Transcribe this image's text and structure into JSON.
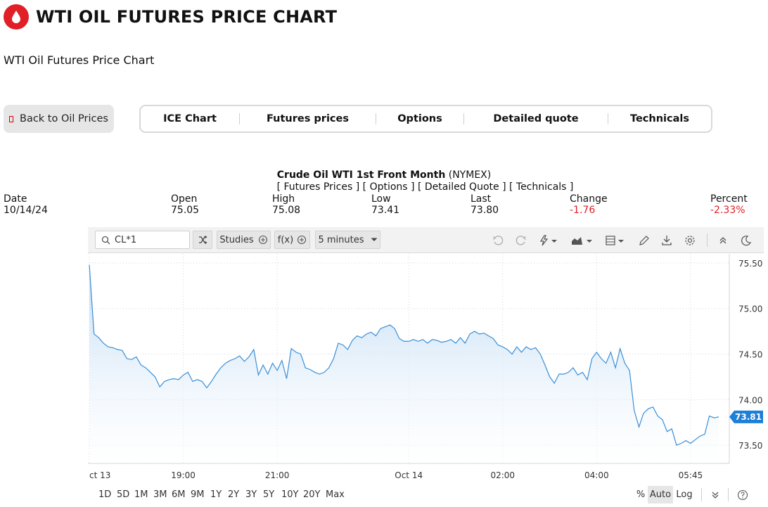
{
  "header": {
    "title": "WTI OIL FUTURES PRICE CHART",
    "subtitle": "WTI Oil Futures Price Chart",
    "logo_icon": "oil-drop-icon",
    "brand_color": "#e01f26"
  },
  "back_button": {
    "label": "Back to Oil Prices",
    "icon": "arrow-icon"
  },
  "tabs": [
    {
      "label": "ICE Chart"
    },
    {
      "label": "Futures prices"
    },
    {
      "label": "Options"
    },
    {
      "label": "Detailed quote"
    },
    {
      "label": "Technicals"
    }
  ],
  "instrument": {
    "name": "Crude Oil WTI 1st Front Month",
    "exchange": "(NYMEX)",
    "links": [
      "[ Futures Prices ]",
      "[ Options ]",
      "[ Detailed Quote ]",
      "[ Technicals ]"
    ]
  },
  "quote": {
    "date_label": "Date",
    "date": "10/14/24",
    "open_label": "Open",
    "open": "75.05",
    "high_label": "High",
    "high": "75.08",
    "low_label": "Low",
    "low": "73.41",
    "last_label": "Last",
    "last": "73.80",
    "change_label": "Change",
    "change": "-1.76",
    "percent_label": "Percent",
    "percent": "-2.33%",
    "negative_color": "#e01f26"
  },
  "toolbar": {
    "search_value": "CL*1",
    "studies_label": "Studies",
    "fx_label": "f(x)",
    "interval_label": "5 minutes",
    "icons": [
      "undo-icon",
      "redo-icon",
      "lightning-icon",
      "chart-type-icon",
      "layout-icon",
      "pencil-icon",
      "download-icon",
      "settings-icon",
      "collapse-icon",
      "dark-mode-icon"
    ]
  },
  "chart_data": {
    "type": "area",
    "current_price_label": "73.81",
    "y_ticks": [
      "75.50",
      "75.00",
      "74.50",
      "74.00",
      "73.50"
    ],
    "x_ticks": [
      "ct 13",
      "19:00",
      "21:00",
      "Oct 14",
      "02:00",
      "04:00",
      "05:45"
    ],
    "ylim": [
      73.3,
      75.6
    ],
    "line_color": "#3a8fd8",
    "values": [
      75.48,
      74.72,
      74.68,
      74.62,
      74.58,
      74.57,
      74.55,
      74.54,
      74.45,
      74.44,
      74.47,
      74.38,
      74.35,
      74.3,
      74.25,
      74.14,
      74.2,
      74.22,
      74.23,
      74.22,
      74.27,
      74.3,
      74.2,
      74.22,
      74.2,
      74.13,
      74.2,
      74.28,
      74.35,
      74.4,
      74.43,
      74.45,
      74.48,
      74.42,
      74.47,
      74.55,
      74.27,
      74.38,
      74.28,
      74.4,
      74.32,
      74.43,
      74.23,
      74.56,
      74.52,
      74.5,
      74.35,
      74.33,
      74.3,
      74.28,
      74.3,
      74.35,
      74.45,
      74.62,
      74.6,
      74.55,
      74.65,
      74.7,
      74.68,
      74.72,
      74.74,
      74.7,
      74.78,
      74.8,
      74.82,
      74.78,
      74.67,
      74.64,
      74.64,
      74.66,
      74.64,
      74.66,
      74.62,
      74.66,
      74.65,
      74.63,
      74.64,
      74.66,
      74.62,
      74.68,
      74.62,
      74.72,
      74.75,
      74.72,
      74.73,
      74.7,
      74.67,
      74.6,
      74.58,
      74.55,
      74.5,
      74.58,
      74.52,
      74.58,
      74.55,
      74.57,
      74.5,
      74.38,
      74.25,
      74.18,
      74.28,
      74.28,
      74.3,
      74.35,
      74.27,
      74.3,
      74.22,
      74.45,
      74.52,
      74.45,
      74.4,
      74.52,
      74.35,
      74.56,
      74.4,
      74.32,
      73.88,
      73.7,
      73.85,
      73.9,
      73.92,
      73.82,
      73.78,
      73.65,
      73.68,
      73.5,
      73.52,
      73.55,
      73.52,
      73.56,
      73.6,
      73.62,
      73.82,
      73.8,
      73.81
    ],
    "ranges": [
      "1D",
      "5D",
      "1M",
      "3M",
      "6M",
      "9M",
      "1Y",
      "2Y",
      "3Y",
      "5Y",
      "10Y",
      "20Y",
      "Max"
    ],
    "scale_options": [
      "%",
      "Auto",
      "Log"
    ],
    "active_scale": "Auto"
  }
}
